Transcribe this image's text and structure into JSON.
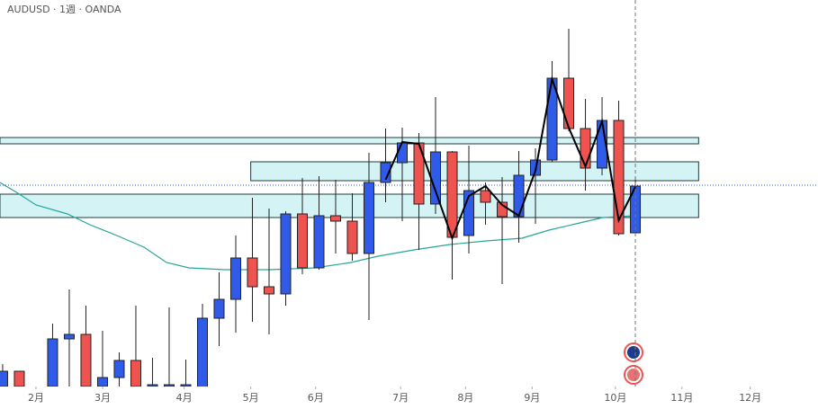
{
  "chart_data": {
    "type": "candlestick",
    "title": "AUDUSD · 1週 · OANDA",
    "x": [
      0,
      1,
      3,
      4,
      5,
      6,
      7,
      8,
      9,
      10,
      11,
      12,
      13,
      14,
      15,
      16,
      17,
      18,
      19,
      20,
      21,
      22,
      23,
      24,
      25,
      26,
      27,
      28,
      29,
      30,
      31,
      32,
      33,
      34,
      35,
      36,
      37,
      38
    ],
    "open": [
      0.594,
      0.5974,
      0.594,
      0.6046,
      0.6056,
      0.594,
      0.596,
      0.5998,
      0.594,
      0.594,
      0.594,
      0.592,
      0.6092,
      0.6134,
      0.6226,
      0.6162,
      0.6146,
      0.6324,
      0.6204,
      0.632,
      0.6308,
      0.6236,
      0.6394,
      0.6438,
      0.6482,
      0.6346,
      0.6462,
      0.6276,
      0.6376,
      0.635,
      0.6318,
      0.641,
      0.6444,
      0.6626,
      0.6514,
      0.6426,
      0.6532,
      0.6282
    ],
    "close": [
      0.5974,
      0.594,
      0.6046,
      0.6056,
      0.594,
      0.596,
      0.5998,
      0.594,
      0.5944,
      0.5944,
      0.5944,
      0.6092,
      0.6134,
      0.6226,
      0.6162,
      0.6146,
      0.6324,
      0.6204,
      0.632,
      0.6308,
      0.6236,
      0.6394,
      0.6438,
      0.6482,
      0.6346,
      0.6462,
      0.6272,
      0.6376,
      0.635,
      0.6318,
      0.641,
      0.6444,
      0.6626,
      0.6514,
      0.6426,
      0.6532,
      0.628,
      0.6386
    ],
    "high": [
      0.599,
      0.5974,
      0.608,
      0.6156,
      0.612,
      0.6064,
      0.6016,
      0.612,
      0.6004,
      0.6116,
      0.6,
      0.6124,
      0.6194,
      0.6276,
      0.636,
      0.6336,
      0.633,
      0.6404,
      0.6408,
      0.64,
      0.637,
      0.646,
      0.6514,
      0.6516,
      0.6504,
      0.6584,
      0.6464,
      0.6476,
      0.6394,
      0.6406,
      0.6464,
      0.647,
      0.6664,
      0.6736,
      0.658,
      0.6584,
      0.6576,
      0.6406
    ],
    "low": [
      0.592,
      0.592,
      0.592,
      0.592,
      0.592,
      0.592,
      0.594,
      0.592,
      0.592,
      0.592,
      0.592,
      0.592,
      0.603,
      0.606,
      0.6084,
      0.6056,
      0.612,
      0.619,
      0.62,
      0.6236,
      0.622,
      0.6088,
      0.635,
      0.6308,
      0.6244,
      0.6324,
      0.6178,
      0.6236,
      0.63,
      0.6168,
      0.626,
      0.6302,
      0.644,
      0.6508,
      0.6376,
      0.641,
      0.6276,
      0.628
    ],
    "up_color": "#2f5be8",
    "down_color": "#ef5350",
    "xlim": [
      -0.16,
      48.97
    ],
    "ylim": [
      0.594,
      0.68
    ],
    "xticks": [
      {
        "value": 2,
        "label": "2月"
      },
      {
        "value": 6,
        "label": "3月"
      },
      {
        "value": 10.9,
        "label": "4月"
      },
      {
        "value": 14.9,
        "label": "5月"
      },
      {
        "value": 18.8,
        "label": "6月"
      },
      {
        "value": 23.9,
        "label": "7月"
      },
      {
        "value": 27.8,
        "label": "8月"
      },
      {
        "value": 31.8,
        "label": "9月"
      },
      {
        "value": 36.8,
        "label": "10月"
      },
      {
        "value": 40.8,
        "label": "11月"
      },
      {
        "value": 44.9,
        "label": "12月"
      }
    ],
    "moving_average": {
      "color": "#26a69a",
      "x": [
        -0.16,
        0.92,
        2,
        3.89,
        5.24,
        6.86,
        8.49,
        9.84,
        11.19,
        13.35,
        16.05,
        18.76,
        20.92,
        22.54,
        24.7,
        26.86,
        29.03,
        31.19,
        32.81,
        34.43,
        36.05,
        38
      ],
      "values": [
        0.6394,
        0.637,
        0.6344,
        0.6324,
        0.63,
        0.6276,
        0.625,
        0.6216,
        0.6204,
        0.62,
        0.62,
        0.6204,
        0.6216,
        0.623,
        0.6244,
        0.6256,
        0.6264,
        0.627,
        0.6288,
        0.6302,
        0.6316,
        0.632
      ]
    },
    "zigzag": {
      "color": "#000000",
      "x": [
        23,
        24,
        25,
        27,
        28,
        29,
        30,
        31,
        32,
        33,
        34,
        35,
        36,
        37,
        38
      ],
      "values": [
        0.64,
        0.6484,
        0.648,
        0.627,
        0.6364,
        0.6386,
        0.6344,
        0.632,
        0.642,
        0.6624,
        0.6516,
        0.643,
        0.653,
        0.631,
        0.6384
      ]
    },
    "zones": [
      {
        "x": [
          -0.16,
          41.8
        ],
        "range": [
          0.648,
          0.6494
        ]
      },
      {
        "x": [
          14.9,
          41.8
        ],
        "range": [
          0.6398,
          0.644
        ]
      },
      {
        "x": [
          -0.16,
          41.8
        ],
        "range": [
          0.6316,
          0.6368
        ]
      }
    ],
    "zone_color": "#d4f3f5",
    "last_price": 0.6388,
    "cursor_x": 38
  }
}
